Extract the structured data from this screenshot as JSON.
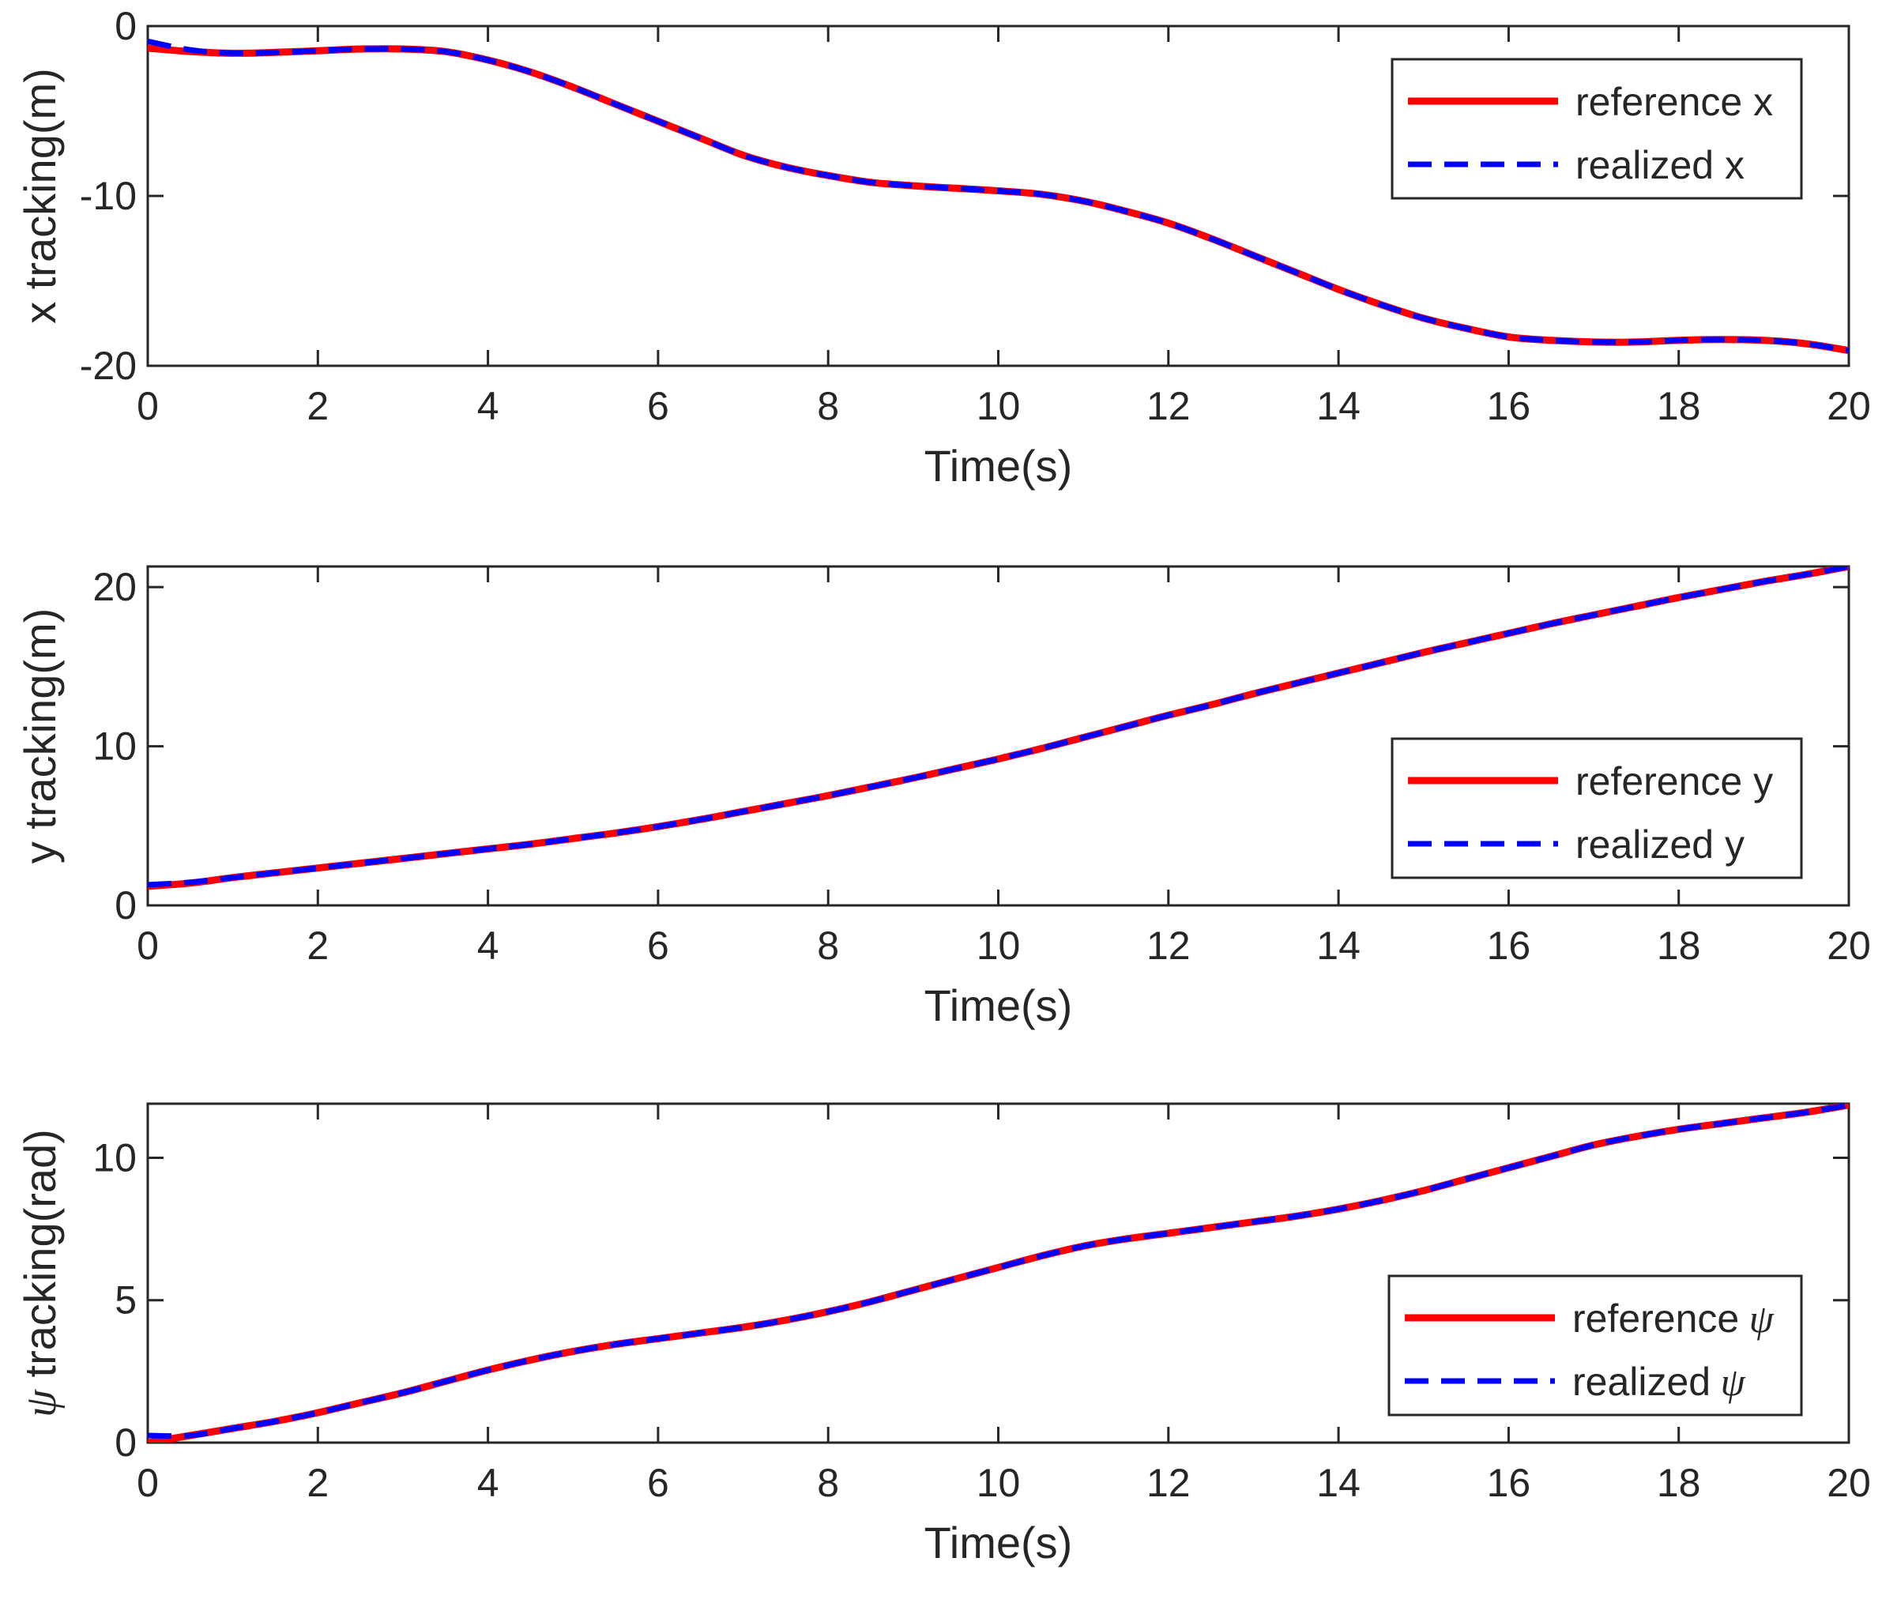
{
  "chart_data": [
    {
      "type": "line",
      "xlabel": "Time(s)",
      "ylabel": "x tracking(m)",
      "xlim": [
        0,
        20
      ],
      "ylim": [
        -20,
        0
      ],
      "xticks": [
        "0",
        "2",
        "4",
        "6",
        "8",
        "10",
        "12",
        "14",
        "16",
        "18",
        "20"
      ],
      "yticks": [
        "-20",
        "-10",
        "0"
      ],
      "ytick_values": [
        -20,
        -10,
        0
      ],
      "legend_position": "top-right",
      "x": [
        0,
        0.5,
        1,
        1.5,
        2,
        2.5,
        3,
        3.5,
        4,
        4.5,
        5,
        5.5,
        6,
        6.5,
        7,
        7.5,
        8,
        8.5,
        9,
        9.5,
        10,
        10.5,
        11,
        11.5,
        12,
        12.5,
        13,
        13.5,
        14,
        14.5,
        15,
        15.5,
        16,
        16.5,
        17,
        17.5,
        18,
        18.5,
        19,
        19.5,
        20
      ],
      "series": [
        {
          "name": "reference x",
          "legend_label": "reference x",
          "color": "#ff0000",
          "style": "solid",
          "values": [
            -1.3,
            -1.5,
            -1.6,
            -1.55,
            -1.45,
            -1.35,
            -1.35,
            -1.5,
            -2.0,
            -2.7,
            -3.6,
            -4.6,
            -5.6,
            -6.6,
            -7.6,
            -8.3,
            -8.8,
            -9.2,
            -9.4,
            -9.55,
            -9.7,
            -9.9,
            -10.3,
            -10.9,
            -11.6,
            -12.5,
            -13.5,
            -14.5,
            -15.5,
            -16.4,
            -17.2,
            -17.8,
            -18.3,
            -18.5,
            -18.6,
            -18.6,
            -18.5,
            -18.45,
            -18.5,
            -18.7,
            -19.1
          ]
        },
        {
          "name": "realized x",
          "legend_label": "realized x",
          "color": "#0000ff",
          "style": "dashed",
          "values": [
            -0.9,
            -1.4,
            -1.6,
            -1.55,
            -1.45,
            -1.35,
            -1.35,
            -1.5,
            -2.0,
            -2.7,
            -3.6,
            -4.6,
            -5.6,
            -6.6,
            -7.6,
            -8.3,
            -8.8,
            -9.2,
            -9.4,
            -9.55,
            -9.7,
            -9.9,
            -10.3,
            -10.9,
            -11.6,
            -12.5,
            -13.5,
            -14.5,
            -15.5,
            -16.4,
            -17.2,
            -17.8,
            -18.3,
            -18.5,
            -18.6,
            -18.6,
            -18.5,
            -18.45,
            -18.5,
            -18.7,
            -19.1
          ]
        }
      ]
    },
    {
      "type": "line",
      "xlabel": "Time(s)",
      "ylabel": "y tracking(m)",
      "xlim": [
        0,
        20
      ],
      "ylim": [
        0,
        21.3
      ],
      "xticks": [
        "0",
        "2",
        "4",
        "6",
        "8",
        "10",
        "12",
        "14",
        "16",
        "18",
        "20"
      ],
      "yticks": [
        "0",
        "10",
        "20"
      ],
      "ytick_values": [
        0,
        10,
        20
      ],
      "legend_position": "middle-right",
      "x": [
        0,
        0.5,
        1,
        1.5,
        2,
        2.5,
        3,
        3.5,
        4,
        4.5,
        5,
        5.5,
        6,
        6.5,
        7,
        7.5,
        8,
        8.5,
        9,
        9.5,
        10,
        10.5,
        11,
        11.5,
        12,
        12.5,
        13,
        13.5,
        14,
        14.5,
        15,
        15.5,
        16,
        16.5,
        17,
        17.5,
        18,
        18.5,
        19,
        19.5,
        20
      ],
      "series": [
        {
          "name": "reference y",
          "legend_label": "reference y",
          "color": "#ff0000",
          "style": "solid",
          "values": [
            1.2,
            1.4,
            1.75,
            2.05,
            2.35,
            2.65,
            2.95,
            3.25,
            3.55,
            3.85,
            4.2,
            4.55,
            4.95,
            5.4,
            5.9,
            6.4,
            6.9,
            7.45,
            8.0,
            8.6,
            9.2,
            9.85,
            10.55,
            11.25,
            11.95,
            12.6,
            13.3,
            13.95,
            14.6,
            15.25,
            15.9,
            16.5,
            17.1,
            17.7,
            18.25,
            18.8,
            19.35,
            19.85,
            20.35,
            20.8,
            21.3
          ]
        },
        {
          "name": "realized y",
          "legend_label": "realized y",
          "color": "#0000ff",
          "style": "dashed",
          "values": [
            1.3,
            1.45,
            1.75,
            2.05,
            2.35,
            2.65,
            2.95,
            3.25,
            3.55,
            3.85,
            4.2,
            4.55,
            4.95,
            5.4,
            5.9,
            6.4,
            6.9,
            7.45,
            8.0,
            8.6,
            9.2,
            9.85,
            10.55,
            11.25,
            11.95,
            12.6,
            13.3,
            13.95,
            14.6,
            15.25,
            15.9,
            16.5,
            17.1,
            17.7,
            18.25,
            18.8,
            19.35,
            19.85,
            20.35,
            20.8,
            21.3
          ]
        }
      ]
    },
    {
      "type": "line",
      "xlabel": "Time(s)",
      "ylabel_symbol": "ψ",
      "ylabel": "tracking(rad)",
      "xlim": [
        0,
        20
      ],
      "ylim": [
        0,
        11.9
      ],
      "xticks": [
        "0",
        "2",
        "4",
        "6",
        "8",
        "10",
        "12",
        "14",
        "16",
        "18",
        "20"
      ],
      "yticks": [
        "0",
        "5",
        "10"
      ],
      "ytick_values": [
        0,
        5,
        10
      ],
      "legend_position": "bottom-right",
      "x": [
        0,
        0.5,
        1,
        1.5,
        2,
        2.5,
        3,
        3.5,
        4,
        4.5,
        5,
        5.5,
        6,
        6.5,
        7,
        7.5,
        8,
        8.5,
        9,
        9.5,
        10,
        10.5,
        11,
        11.5,
        12,
        12.5,
        13,
        13.5,
        14,
        14.5,
        15,
        15.5,
        16,
        16.5,
        17,
        17.5,
        18,
        18.5,
        19,
        19.5,
        20
      ],
      "series": [
        {
          "name": "reference ψ",
          "legend_label": "reference",
          "legend_symbol": "ψ",
          "color": "#ff0000",
          "style": "solid",
          "values": [
            0.0,
            0.25,
            0.5,
            0.75,
            1.05,
            1.4,
            1.75,
            2.15,
            2.55,
            2.9,
            3.2,
            3.45,
            3.65,
            3.85,
            4.05,
            4.3,
            4.6,
            4.95,
            5.35,
            5.75,
            6.15,
            6.55,
            6.9,
            7.15,
            7.35,
            7.55,
            7.75,
            7.95,
            8.2,
            8.5,
            8.85,
            9.25,
            9.65,
            10.05,
            10.45,
            10.75,
            11.0,
            11.2,
            11.4,
            11.6,
            11.85
          ]
        },
        {
          "name": "realized ψ",
          "legend_label": "realized",
          "legend_symbol": "ψ",
          "color": "#0000ff",
          "style": "dashed",
          "values": [
            0.25,
            0.25,
            0.5,
            0.75,
            1.05,
            1.4,
            1.75,
            2.15,
            2.55,
            2.9,
            3.2,
            3.45,
            3.65,
            3.85,
            4.05,
            4.3,
            4.6,
            4.95,
            5.35,
            5.75,
            6.15,
            6.55,
            6.9,
            7.15,
            7.35,
            7.55,
            7.75,
            7.95,
            8.2,
            8.5,
            8.85,
            9.25,
            9.65,
            10.05,
            10.45,
            10.75,
            11.0,
            11.2,
            11.4,
            11.6,
            11.85
          ]
        }
      ]
    }
  ]
}
